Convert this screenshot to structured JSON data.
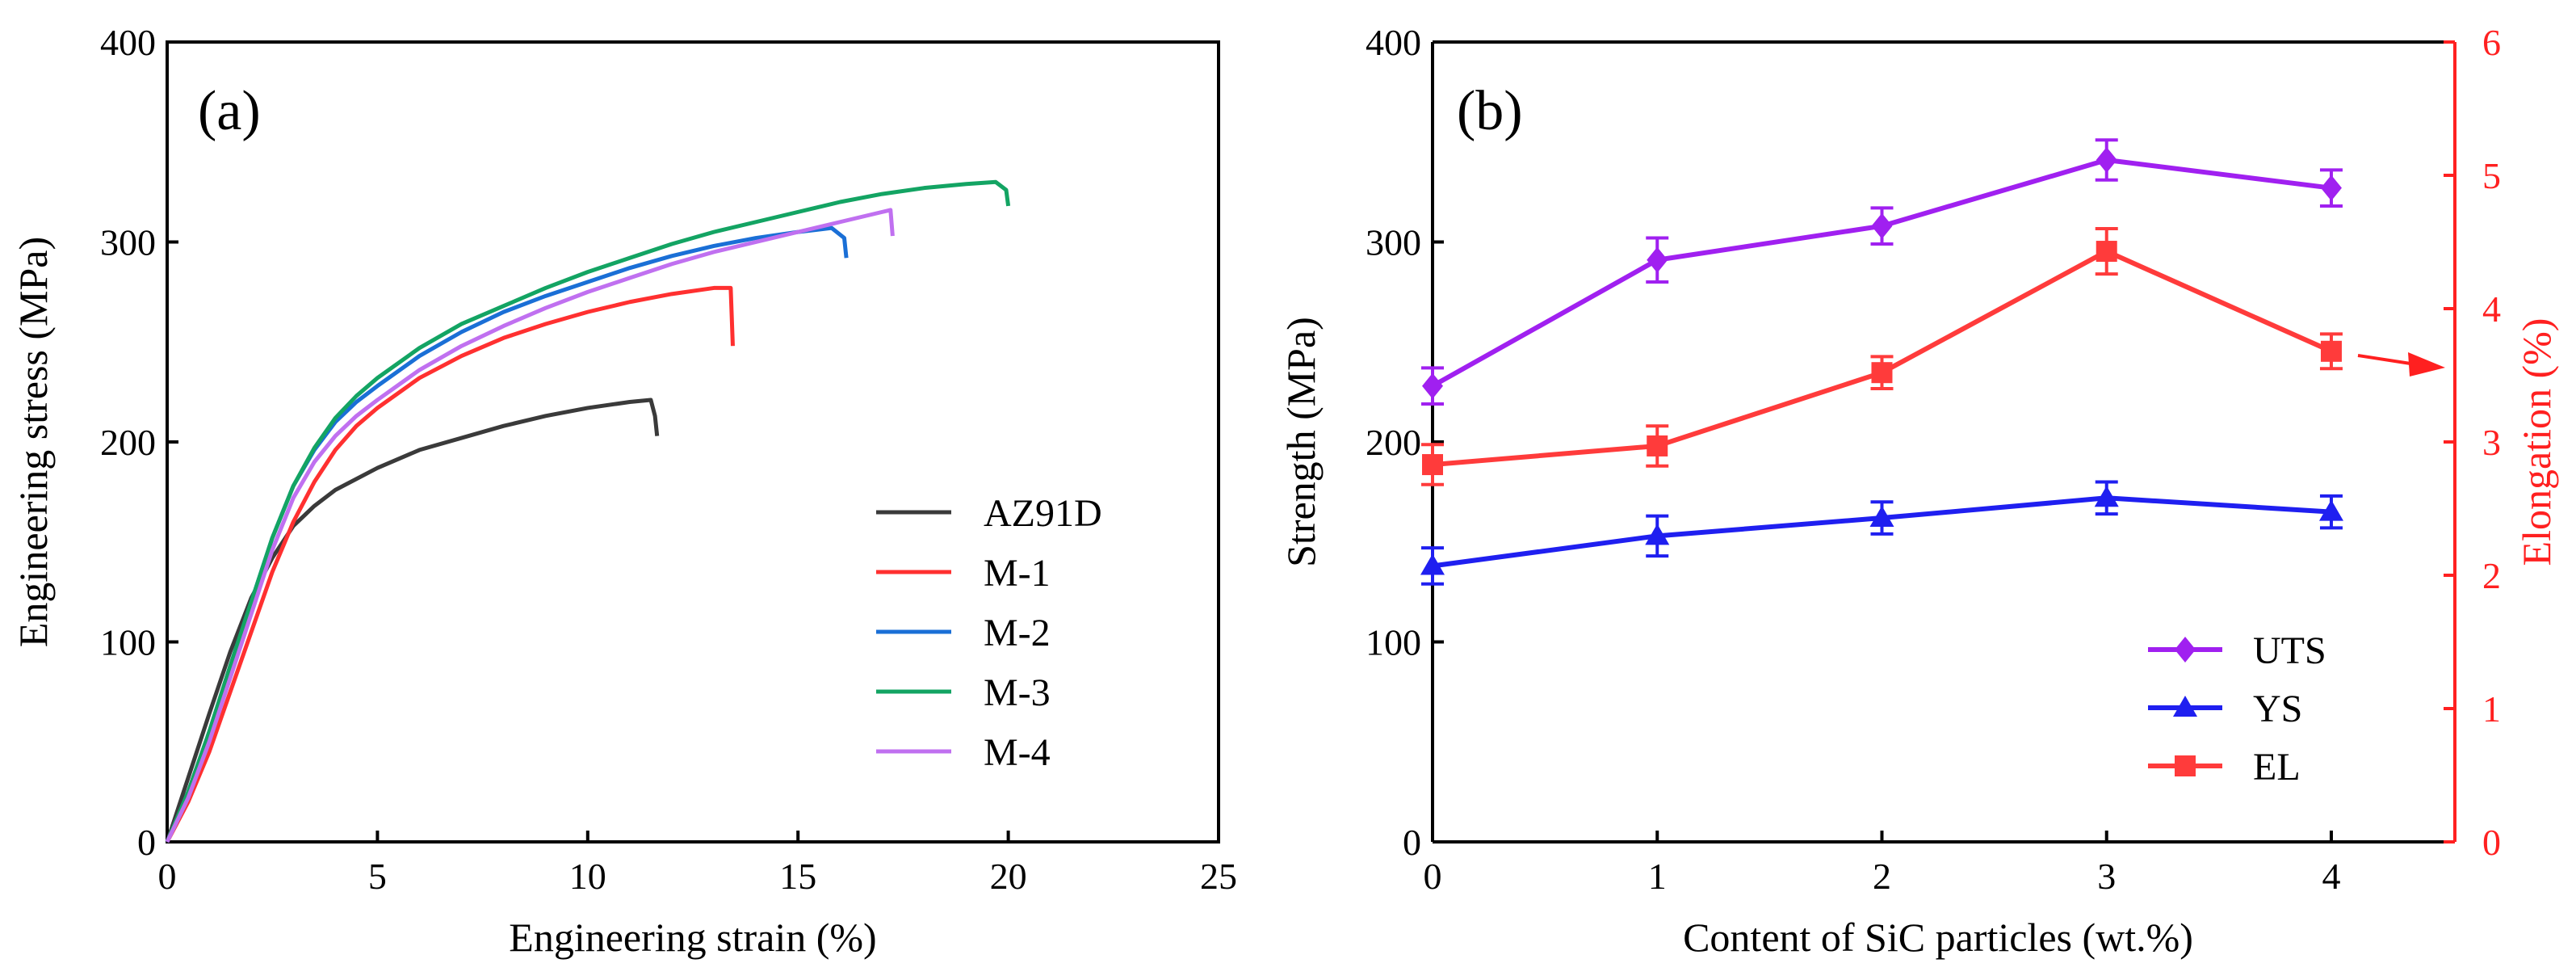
{
  "chart_data": [
    {
      "panel": "(a)",
      "type": "line",
      "xlabel": "Engineering strain (%)",
      "ylabel": "Engineering stress (MPa)",
      "xlim": [
        0,
        25
      ],
      "ylim": [
        0,
        400
      ],
      "xticks": [
        "0",
        "5",
        "10",
        "15",
        "20",
        "25"
      ],
      "yticks": [
        "0",
        "100",
        "200",
        "300",
        "400"
      ],
      "legend_position": "bottom-right",
      "series": [
        {
          "name": "AZ91D",
          "color": "#3a3a3a",
          "x": [
            0,
            0.5,
            1,
            1.5,
            2,
            2.5,
            3,
            3.5,
            4,
            5,
            6,
            7,
            8,
            9,
            10,
            11,
            11.5,
            11.6,
            11.65
          ],
          "y": [
            0,
            32,
            64,
            95,
            122,
            142,
            158,
            168,
            176,
            187,
            196,
            202,
            208,
            213,
            217,
            220,
            221,
            213,
            203
          ]
        },
        {
          "name": "M-1",
          "color": "#ff3030",
          "x": [
            0,
            0.5,
            1,
            1.5,
            2,
            2.5,
            3,
            3.5,
            4,
            4.5,
            5,
            6,
            7,
            8,
            9,
            10,
            11,
            12,
            13,
            13.4,
            13.45
          ],
          "y": [
            0,
            20,
            45,
            75,
            105,
            135,
            160,
            180,
            196,
            208,
            217,
            232,
            243,
            252,
            259,
            265,
            270,
            274,
            277,
            277,
            248
          ]
        },
        {
          "name": "M-2",
          "color": "#1a6fd6",
          "x": [
            0,
            0.5,
            1,
            1.5,
            2,
            2.5,
            3,
            3.5,
            4,
            4.5,
            5,
            6,
            7,
            8,
            9,
            10,
            11,
            12,
            13,
            14,
            15,
            15.8,
            16.1,
            16.15
          ],
          "y": [
            0,
            25,
            55,
            88,
            120,
            152,
            178,
            196,
            210,
            220,
            228,
            243,
            255,
            265,
            273,
            280,
            287,
            293,
            298,
            302,
            305,
            307,
            302,
            292
          ]
        },
        {
          "name": "M-3",
          "color": "#13a463",
          "x": [
            0,
            0.5,
            1,
            1.5,
            2,
            2.5,
            3,
            3.5,
            4,
            4.5,
            5,
            6,
            7,
            8,
            9,
            10,
            11,
            12,
            13,
            14,
            15,
            16,
            17,
            18,
            19,
            19.7,
            19.95,
            20
          ],
          "y": [
            0,
            25,
            55,
            88,
            120,
            152,
            178,
            197,
            212,
            223,
            232,
            247,
            259,
            268,
            277,
            285,
            292,
            299,
            305,
            310,
            315,
            320,
            324,
            327,
            329,
            330,
            326,
            318
          ]
        },
        {
          "name": "M-4",
          "color": "#c070f0",
          "x": [
            0,
            0.5,
            1,
            1.5,
            2,
            2.5,
            3,
            3.5,
            4,
            4.5,
            5,
            6,
            7,
            8,
            9,
            10,
            11,
            12,
            13,
            14,
            15,
            16,
            17,
            17.2,
            17.25
          ],
          "y": [
            0,
            22,
            50,
            82,
            114,
            146,
            172,
            190,
            203,
            213,
            221,
            236,
            248,
            258,
            267,
            275,
            282,
            289,
            295,
            300,
            305,
            310,
            315,
            316,
            303
          ]
        }
      ]
    },
    {
      "panel": "(b)",
      "type": "line",
      "xlabel": "Content of SiC particles (wt.%)",
      "ylabel": "Strength (MPa)",
      "y2label": "Elongation (%)",
      "categories": [
        0,
        1,
        2,
        3,
        4
      ],
      "xticks": [
        "0",
        "1",
        "2",
        "3",
        "4"
      ],
      "yticks": [
        "0",
        "100",
        "200",
        "300",
        "400"
      ],
      "y2ticks": [
        "0",
        "1",
        "2",
        "3",
        "4",
        "5",
        "6"
      ],
      "xlim": [
        0,
        4.55
      ],
      "ylim": [
        0,
        400
      ],
      "y2lim": [
        0,
        6
      ],
      "legend_position": "bottom-right",
      "series": [
        {
          "name": "UTS",
          "axis": "left",
          "marker": "diamond",
          "color": "#a020f0",
          "values": [
            228,
            291,
            308,
            341,
            327
          ],
          "errors": [
            9,
            11,
            9,
            10,
            9
          ]
        },
        {
          "name": "YS",
          "axis": "left",
          "marker": "triangle",
          "color": "#1f1ff0",
          "values": [
            138,
            153,
            162,
            172,
            165
          ],
          "errors": [
            9,
            10,
            8,
            8,
            8
          ]
        },
        {
          "name": "EL",
          "axis": "right",
          "marker": "square",
          "color": "#ff3b3b",
          "values": [
            2.83,
            2.97,
            3.52,
            4.43,
            3.68
          ],
          "errors": [
            0.15,
            0.15,
            0.12,
            0.17,
            0.13
          ]
        }
      ],
      "annotation": "red arrow pointing from EL series to the right Elongation axis"
    }
  ]
}
